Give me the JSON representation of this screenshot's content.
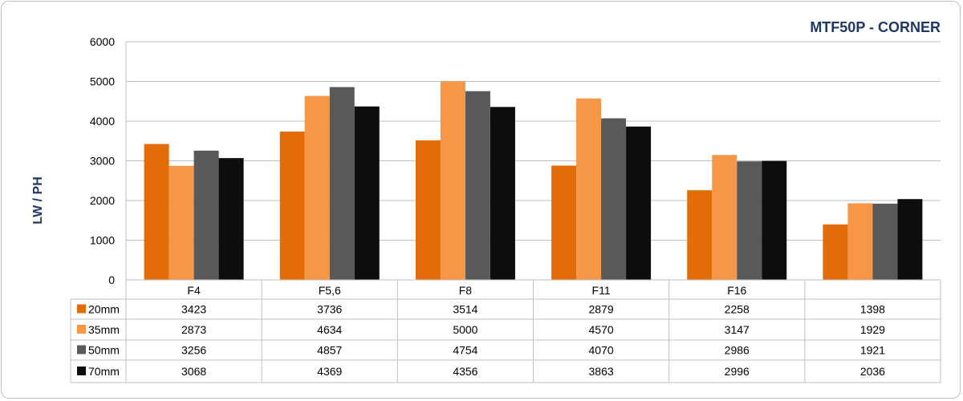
{
  "chart_data": {
    "type": "bar",
    "title": "MTF50P - CORNER",
    "ylabel": "LW / PH",
    "xlabel": "",
    "ylim": [
      0,
      6000
    ],
    "yticks": [
      0,
      1000,
      2000,
      3000,
      4000,
      5000,
      6000
    ],
    "grid": true,
    "legend": "data-table",
    "categories": [
      "F4",
      "F5,6",
      "F8",
      "F11",
      "F16",
      ""
    ],
    "series": [
      {
        "name": "20mm",
        "color": "#e36c09",
        "values": [
          3423,
          3736,
          3514,
          2879,
          2258,
          1398
        ]
      },
      {
        "name": "35mm",
        "color": "#f79646",
        "values": [
          2873,
          4634,
          5000,
          4570,
          3147,
          1929
        ]
      },
      {
        "name": "50mm",
        "color": "#595959",
        "values": [
          3256,
          4857,
          4754,
          4070,
          2986,
          1921
        ]
      },
      {
        "name": "70mm",
        "color": "#0d0d0d",
        "values": [
          3068,
          4369,
          4356,
          3863,
          2996,
          2036
        ]
      }
    ]
  }
}
